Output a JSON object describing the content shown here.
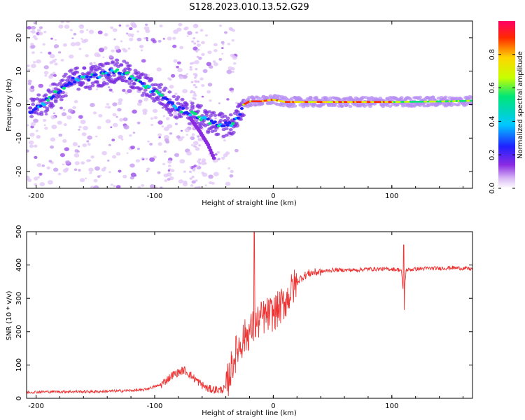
{
  "title": "S128.2023.010.13.52.G29",
  "panels": {
    "spectrogram": {
      "xlabel": "Height of straight line (km)",
      "ylabel": "Frequency (Hz)",
      "colorbar_label": "Normalized spectral amplitude"
    },
    "snr": {
      "xlabel": "Height of straight line (km)",
      "ylabel": "SNR (10 * v/v)"
    }
  },
  "chart_data": [
    {
      "type": "heatmap",
      "xlabel": "Height of straight line (km)",
      "ylabel": "Frequency (Hz)",
      "xlim": [
        -208,
        168
      ],
      "ylim": [
        -25,
        25
      ],
      "x_ticks": [
        -200,
        -100,
        0,
        100
      ],
      "y_ticks": [
        -20,
        -10,
        0,
        10,
        20
      ],
      "colorbar": {
        "label": "Normalized spectral amplitude",
        "range": [
          0,
          1
        ],
        "ticks": [
          0.0,
          0.2,
          0.4,
          0.6,
          0.8
        ],
        "colormap": [
          "#ffffff",
          "#d9b8f5",
          "#8a2be2",
          "#2020ff",
          "#00c8ff",
          "#00e676",
          "#c6ff00",
          "#ffd600",
          "#ff2a00",
          "#ff0066"
        ]
      },
      "ridge": {
        "x": [
          -205,
          -195,
          -185,
          -175,
          -165,
          -155,
          -145,
          -135,
          -125,
          -115,
          -105,
          -95,
          -85,
          -75,
          -65,
          -55,
          -45,
          -35,
          -30,
          -25,
          -20,
          -10,
          0,
          10,
          50,
          100,
          150,
          168
        ],
        "y": [
          -2,
          0,
          3,
          6,
          8,
          8,
          9,
          10,
          9.5,
          7,
          5,
          3,
          0,
          -2,
          -3,
          -5,
          -6,
          -6,
          -4,
          0,
          1,
          1,
          1.5,
          0.8,
          0.8,
          0.8,
          1,
          1.2
        ]
      },
      "branch": {
        "x": [
          -70,
          -62,
          -55,
          -50
        ],
        "y": [
          -4,
          -8,
          -12,
          -16
        ]
      }
    },
    {
      "type": "line",
      "xlabel": "Height of straight line (km)",
      "ylabel": "SNR (10 * v/v)",
      "xlim": [
        -208,
        168
      ],
      "ylim": [
        0,
        500
      ],
      "x_ticks": [
        -200,
        -100,
        0,
        100
      ],
      "y_ticks": [
        0,
        100,
        200,
        300,
        400,
        500
      ],
      "color": "#ee3333",
      "series": [
        {
          "x": [
            -208,
            -190,
            -170,
            -150,
            -130,
            -110,
            -95,
            -85,
            -75,
            -70,
            -65,
            -60,
            -55,
            -45,
            -40,
            -37,
            -33,
            -30,
            -25,
            -20,
            -15,
            -10,
            -5,
            0,
            5,
            10,
            15,
            20,
            25,
            30,
            40,
            50,
            60,
            70,
            80,
            90,
            100,
            108,
            110,
            112,
            120,
            130,
            140,
            150,
            160,
            168
          ],
          "y": [
            18,
            20,
            20,
            20,
            22,
            25,
            40,
            70,
            85,
            70,
            55,
            40,
            28,
            25,
            30,
            70,
            120,
            150,
            180,
            200,
            220,
            240,
            250,
            255,
            270,
            290,
            320,
            350,
            365,
            375,
            380,
            385,
            385,
            385,
            388,
            388,
            388,
            385,
            300,
            385,
            388,
            390,
            390,
            392,
            390,
            388
          ]
        }
      ],
      "annotations": [
        {
          "x": -16,
          "y": 500,
          "note": "spike"
        },
        {
          "x": 110,
          "y": 460,
          "note": "spike"
        },
        {
          "x": 110,
          "y": 265,
          "note": "dip"
        }
      ]
    }
  ]
}
